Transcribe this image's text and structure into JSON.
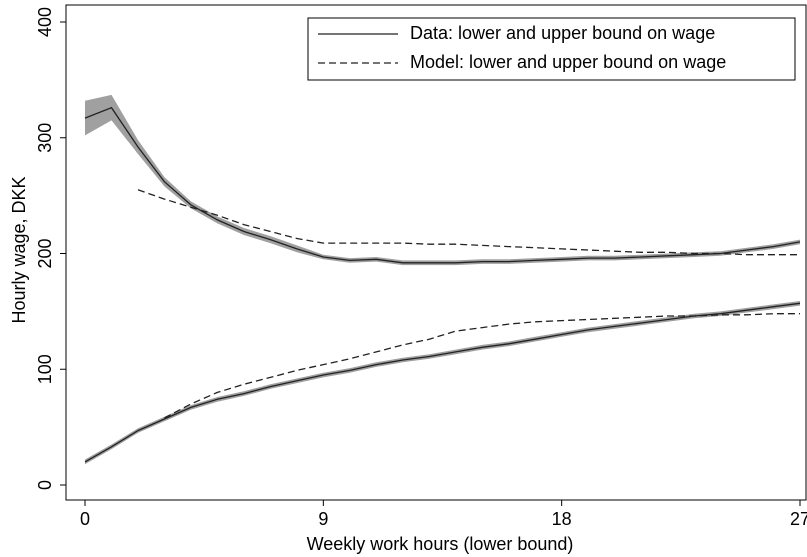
{
  "chart_data": {
    "type": "line",
    "x_label": "Weekly work hours (lower bound)",
    "y_label": "Hourly wage, DKK",
    "x": [
      0,
      1,
      2,
      3,
      4,
      5,
      6,
      7,
      8,
      9,
      10,
      11,
      12,
      13,
      14,
      15,
      16,
      17,
      18,
      19,
      20,
      21,
      22,
      23,
      24,
      25,
      26,
      27
    ],
    "xlim": [
      0,
      27
    ],
    "xticks": [
      0,
      9,
      18,
      27
    ],
    "ylim": [
      0,
      400
    ],
    "yticks": [
      0,
      100,
      200,
      300,
      400
    ],
    "legend": "top-right",
    "series": [
      {
        "name": "Data: lower and upper bound on wage",
        "color": "#222222",
        "dashed": false,
        "band_color": "#a0a0a0",
        "upper": [
          317,
          326,
          292,
          262,
          242,
          229,
          219,
          212,
          204,
          197,
          194,
          195,
          192,
          192,
          192,
          193,
          193,
          194,
          195,
          196,
          196,
          197,
          198,
          199,
          200,
          203,
          206,
          210
        ],
        "upper_err": [
          15,
          11,
          6,
          4,
          3,
          3,
          3,
          3,
          3,
          2,
          2,
          2,
          2,
          2,
          2,
          2,
          2,
          2,
          2,
          2,
          2,
          2,
          2,
          2,
          2,
          2,
          2,
          2
        ],
        "lower": [
          20,
          33,
          47,
          57,
          67,
          74,
          79,
          85,
          90,
          95,
          99,
          104,
          108,
          111,
          115,
          119,
          122,
          126,
          130,
          134,
          137,
          140,
          143,
          146,
          148,
          151,
          154,
          157
        ],
        "lower_err": [
          2,
          2,
          2,
          2,
          2,
          2,
          2,
          2,
          2,
          2,
          2,
          2,
          2,
          2,
          2,
          2,
          2,
          2,
          2,
          2,
          2,
          2,
          2,
          2,
          2,
          2,
          2,
          2
        ]
      },
      {
        "name": "Model: lower and upper bound on wage",
        "color": "#222222",
        "dashed": true,
        "upper": [
          null,
          null,
          255,
          247,
          240,
          233,
          225,
          219,
          213,
          209,
          209,
          209,
          209,
          208,
          208,
          207,
          206,
          205,
          204,
          203,
          202,
          201,
          201,
          200,
          200,
          199,
          199,
          199
        ],
        "lower": [
          null,
          null,
          null,
          58,
          70,
          80,
          87,
          93,
          99,
          104,
          109,
          115,
          121,
          126,
          133,
          136,
          139,
          141,
          142,
          143,
          144,
          145,
          146,
          146,
          147,
          147,
          148,
          148
        ]
      }
    ]
  }
}
